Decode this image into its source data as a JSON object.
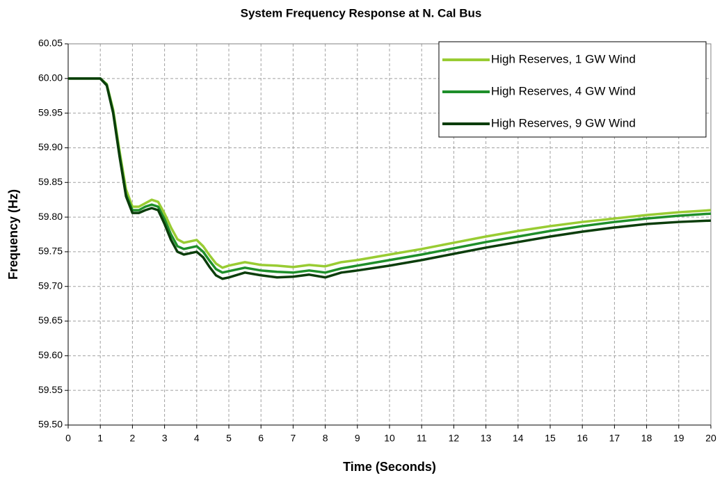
{
  "chart_data": {
    "type": "line",
    "title": "System Frequency Response at N. Cal Bus",
    "x_label": "Time (Seconds)",
    "y_label": "Frequency (Hz)",
    "x": [
      0,
      0.5,
      1,
      1.2,
      1.4,
      1.6,
      1.8,
      2,
      2.2,
      2.4,
      2.6,
      2.8,
      3,
      3.2,
      3.4,
      3.6,
      3.8,
      4,
      4.2,
      4.4,
      4.6,
      4.8,
      5,
      5.5,
      6,
      6.5,
      7,
      7.5,
      8,
      8.5,
      9,
      10,
      11,
      12,
      13,
      14,
      15,
      16,
      17,
      18,
      19,
      20
    ],
    "series": [
      {
        "name": "High Reserves, 1 GW Wind",
        "color": "#99cc33",
        "values": [
          60,
          60,
          60,
          59.992,
          59.955,
          59.895,
          59.84,
          59.815,
          59.815,
          59.82,
          59.825,
          59.822,
          59.805,
          59.785,
          59.768,
          59.763,
          59.765,
          59.767,
          59.758,
          59.745,
          59.733,
          59.727,
          59.73,
          59.735,
          59.731,
          59.73,
          59.728,
          59.731,
          59.729,
          59.735,
          59.738,
          59.746,
          59.754,
          59.763,
          59.772,
          59.78,
          59.787,
          59.793,
          59.798,
          59.803,
          59.807,
          59.81
        ]
      },
      {
        "name": "High Reserves, 4 GW Wind",
        "color": "#1e8f2a",
        "values": [
          60,
          60,
          60,
          59.991,
          59.952,
          59.89,
          59.833,
          59.81,
          59.81,
          59.815,
          59.818,
          59.815,
          59.797,
          59.775,
          59.758,
          59.754,
          59.756,
          59.758,
          59.75,
          59.737,
          59.725,
          59.72,
          59.722,
          59.727,
          59.723,
          59.721,
          59.72,
          59.723,
          59.72,
          59.726,
          59.73,
          59.738,
          59.746,
          59.755,
          59.764,
          59.772,
          59.78,
          59.787,
          59.793,
          59.798,
          59.802,
          59.805
        ]
      },
      {
        "name": "High Reserves, 9 GW Wind",
        "color": "#0b3d0b",
        "values": [
          60,
          60,
          60,
          59.99,
          59.95,
          59.887,
          59.83,
          59.806,
          59.806,
          59.81,
          59.813,
          59.81,
          59.79,
          59.767,
          59.75,
          59.746,
          59.748,
          59.75,
          59.742,
          59.728,
          59.716,
          59.711,
          59.713,
          59.72,
          59.716,
          59.713,
          59.714,
          59.717,
          59.713,
          59.72,
          59.723,
          59.73,
          59.738,
          59.747,
          59.756,
          59.764,
          59.772,
          59.779,
          59.785,
          59.79,
          59.793,
          59.795
        ]
      }
    ],
    "xlim": [
      0,
      20
    ],
    "xticks": [
      0,
      1,
      2,
      3,
      4,
      5,
      6,
      7,
      8,
      9,
      10,
      11,
      12,
      13,
      14,
      15,
      16,
      17,
      18,
      19,
      20
    ],
    "ylim": [
      59.5,
      60.05
    ],
    "yticks": [
      {
        "value": 59.5,
        "label": "59.50"
      },
      59.55,
      {
        "value": 59.6,
        "label": "59.60"
      },
      59.65,
      {
        "value": 59.7,
        "label": "59.70"
      },
      59.75,
      {
        "value": 59.8,
        "label": "59.80"
      },
      59.85,
      {
        "value": 59.9,
        "label": "59.90"
      },
      59.95,
      {
        "value": 60,
        "label": "60.00"
      },
      60.05
    ],
    "grid": true,
    "legend": "top-right"
  }
}
